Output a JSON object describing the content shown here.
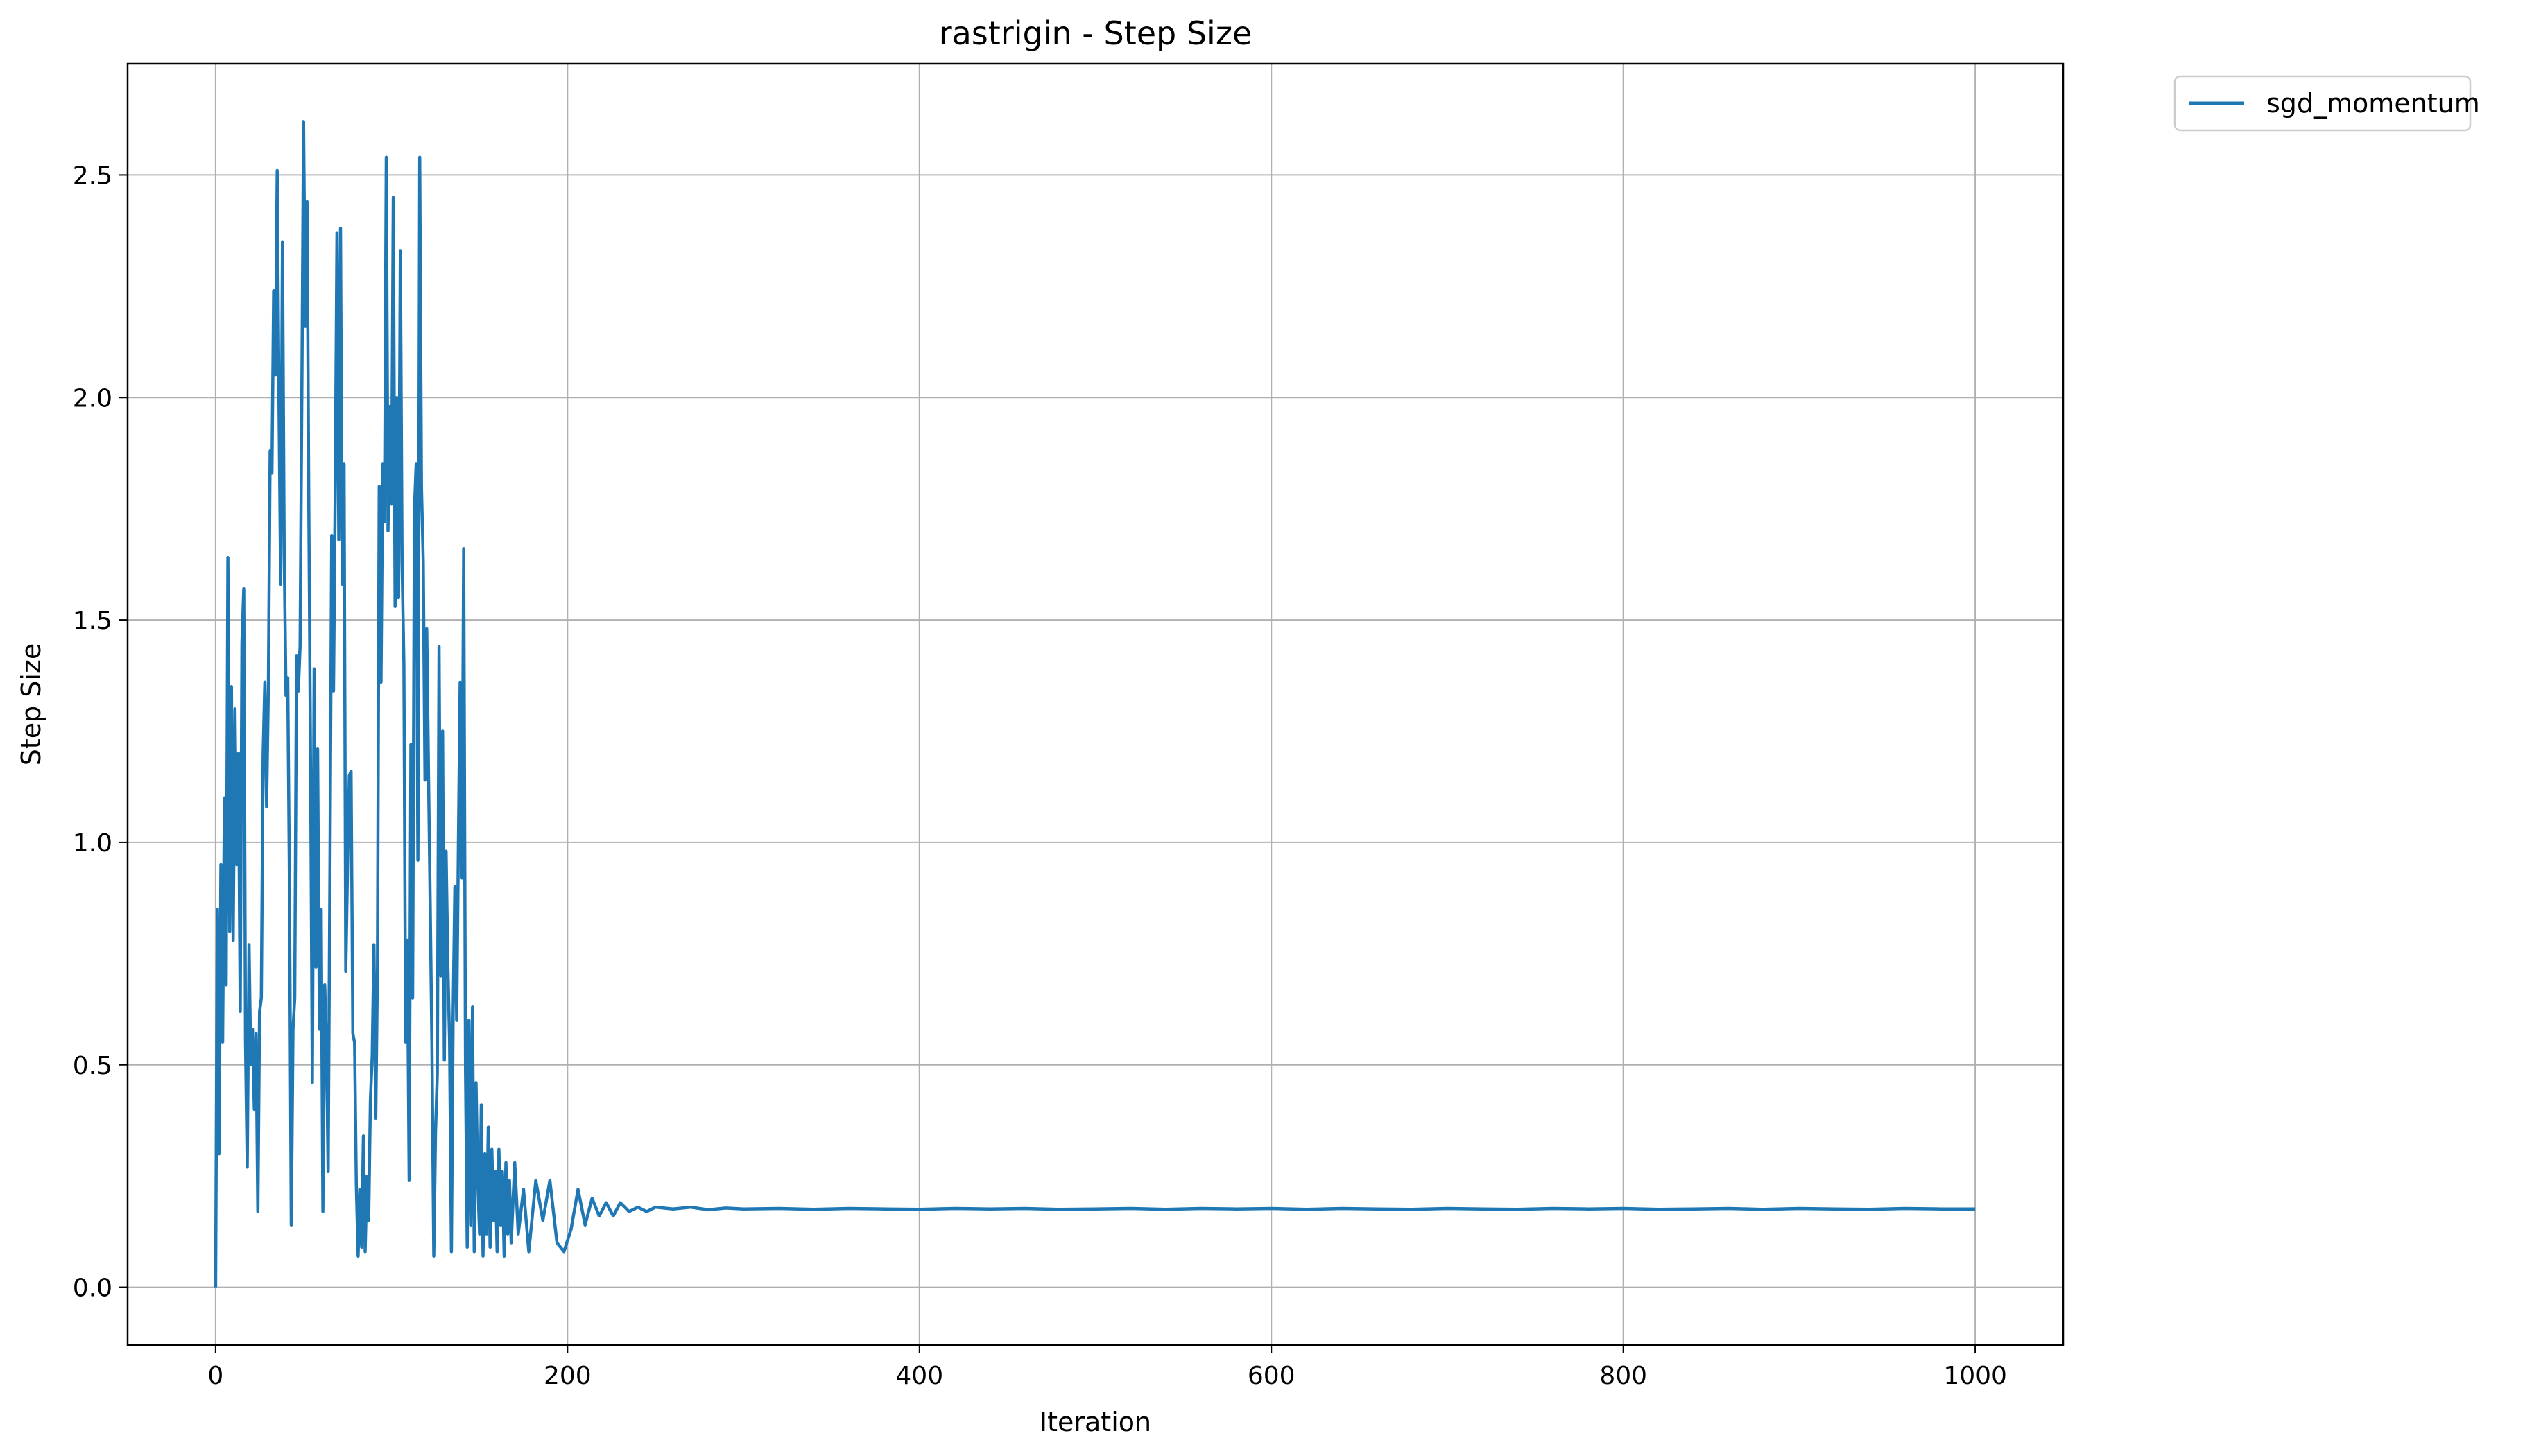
{
  "chart_data": {
    "type": "line",
    "title": "rastrigin - Step Size",
    "xlabel": "Iteration",
    "ylabel": "Step Size",
    "xlim": [
      -50,
      1050
    ],
    "ylim": [
      -0.13,
      2.75
    ],
    "xticks": [
      0,
      200,
      400,
      600,
      800,
      1000
    ],
    "xtick_labels": [
      "0",
      "200",
      "400",
      "600",
      "800",
      "1000"
    ],
    "yticks": [
      0.0,
      0.5,
      1.0,
      1.5,
      2.0,
      2.5
    ],
    "ytick_labels": [
      "0.0",
      "0.5",
      "1.0",
      "1.5",
      "2.0",
      "2.5"
    ],
    "grid": true,
    "legend_position": "outside-top-right",
    "series": [
      {
        "name": "sgd_momentum",
        "color": "#1f77b4",
        "points": [
          [
            0,
            0.0
          ],
          [
            1,
            0.85
          ],
          [
            2,
            0.3
          ],
          [
            3,
            0.95
          ],
          [
            4,
            0.55
          ],
          [
            5,
            1.1
          ],
          [
            6,
            0.68
          ],
          [
            7,
            1.64
          ],
          [
            8,
            0.8
          ],
          [
            9,
            1.35
          ],
          [
            10,
            0.78
          ],
          [
            11,
            1.3
          ],
          [
            12,
            0.95
          ],
          [
            13,
            1.2
          ],
          [
            14,
            0.62
          ],
          [
            15,
            1.45
          ],
          [
            16,
            1.57
          ],
          [
            17,
            0.55
          ],
          [
            18,
            0.27
          ],
          [
            19,
            0.77
          ],
          [
            20,
            0.5
          ],
          [
            21,
            0.58
          ],
          [
            22,
            0.4
          ],
          [
            23,
            0.57
          ],
          [
            24,
            0.17
          ],
          [
            25,
            0.62
          ],
          [
            26,
            0.65
          ],
          [
            27,
            1.2
          ],
          [
            28,
            1.36
          ],
          [
            29,
            1.08
          ],
          [
            30,
            1.35
          ],
          [
            31,
            1.88
          ],
          [
            32,
            1.83
          ],
          [
            33,
            2.24
          ],
          [
            34,
            2.05
          ],
          [
            35,
            2.51
          ],
          [
            36,
            2.0
          ],
          [
            37,
            1.58
          ],
          [
            38,
            2.35
          ],
          [
            39,
            1.65
          ],
          [
            40,
            1.33
          ],
          [
            41,
            1.37
          ],
          [
            42,
            0.9
          ],
          [
            43,
            0.14
          ],
          [
            44,
            0.58
          ],
          [
            45,
            0.65
          ],
          [
            46,
            1.42
          ],
          [
            47,
            1.34
          ],
          [
            48,
            1.44
          ],
          [
            49,
            2.0
          ],
          [
            50,
            2.62
          ],
          [
            51,
            2.16
          ],
          [
            52,
            2.44
          ],
          [
            53,
            1.75
          ],
          [
            54,
            1.15
          ],
          [
            55,
            0.46
          ],
          [
            56,
            1.39
          ],
          [
            57,
            0.72
          ],
          [
            58,
            1.21
          ],
          [
            59,
            0.58
          ],
          [
            60,
            0.85
          ],
          [
            61,
            0.17
          ],
          [
            62,
            0.68
          ],
          [
            63,
            0.55
          ],
          [
            64,
            0.26
          ],
          [
            65,
            0.95
          ],
          [
            66,
            1.69
          ],
          [
            67,
            1.34
          ],
          [
            68,
            1.8
          ],
          [
            69,
            2.37
          ],
          [
            70,
            1.68
          ],
          [
            71,
            2.38
          ],
          [
            72,
            1.58
          ],
          [
            73,
            1.85
          ],
          [
            74,
            0.71
          ],
          [
            75,
            0.95
          ],
          [
            76,
            1.15
          ],
          [
            77,
            1.16
          ],
          [
            78,
            0.57
          ],
          [
            79,
            0.55
          ],
          [
            80,
            0.23
          ],
          [
            81,
            0.07
          ],
          [
            82,
            0.22
          ],
          [
            83,
            0.09
          ],
          [
            84,
            0.34
          ],
          [
            85,
            0.08
          ],
          [
            86,
            0.25
          ],
          [
            87,
            0.15
          ],
          [
            88,
            0.42
          ],
          [
            89,
            0.52
          ],
          [
            90,
            0.77
          ],
          [
            91,
            0.38
          ],
          [
            92,
            0.72
          ],
          [
            93,
            1.8
          ],
          [
            94,
            1.36
          ],
          [
            95,
            1.85
          ],
          [
            96,
            1.72
          ],
          [
            97,
            2.54
          ],
          [
            98,
            1.7
          ],
          [
            99,
            1.98
          ],
          [
            100,
            1.76
          ],
          [
            101,
            2.45
          ],
          [
            102,
            1.53
          ],
          [
            103,
            2.0
          ],
          [
            104,
            1.55
          ],
          [
            105,
            2.33
          ],
          [
            106,
            1.63
          ],
          [
            107,
            1.4
          ],
          [
            108,
            0.55
          ],
          [
            109,
            0.78
          ],
          [
            110,
            0.24
          ],
          [
            111,
            1.22
          ],
          [
            112,
            0.65
          ],
          [
            113,
            1.75
          ],
          [
            114,
            1.85
          ],
          [
            115,
            0.96
          ],
          [
            116,
            2.54
          ],
          [
            117,
            1.8
          ],
          [
            118,
            1.63
          ],
          [
            119,
            1.14
          ],
          [
            120,
            1.48
          ],
          [
            121,
            1.15
          ],
          [
            122,
            0.85
          ],
          [
            123,
            0.53
          ],
          [
            124,
            0.07
          ],
          [
            125,
            0.35
          ],
          [
            126,
            0.48
          ],
          [
            127,
            1.44
          ],
          [
            128,
            0.7
          ],
          [
            129,
            1.25
          ],
          [
            130,
            0.51
          ],
          [
            131,
            0.98
          ],
          [
            132,
            0.72
          ],
          [
            133,
            0.55
          ],
          [
            134,
            0.08
          ],
          [
            135,
            0.62
          ],
          [
            136,
            0.9
          ],
          [
            137,
            0.6
          ],
          [
            138,
            1.0
          ],
          [
            139,
            1.36
          ],
          [
            140,
            0.92
          ],
          [
            141,
            1.66
          ],
          [
            142,
            0.5
          ],
          [
            143,
            0.09
          ],
          [
            144,
            0.6
          ],
          [
            145,
            0.14
          ],
          [
            146,
            0.63
          ],
          [
            147,
            0.08
          ],
          [
            148,
            0.46
          ],
          [
            149,
            0.24
          ],
          [
            150,
            0.12
          ],
          [
            151,
            0.41
          ],
          [
            152,
            0.07
          ],
          [
            153,
            0.3
          ],
          [
            154,
            0.12
          ],
          [
            155,
            0.36
          ],
          [
            156,
            0.09
          ],
          [
            157,
            0.31
          ],
          [
            158,
            0.15
          ],
          [
            159,
            0.26
          ],
          [
            160,
            0.08
          ],
          [
            161,
            0.31
          ],
          [
            162,
            0.14
          ],
          [
            163,
            0.26
          ],
          [
            164,
            0.07
          ],
          [
            165,
            0.28
          ],
          [
            166,
            0.12
          ],
          [
            167,
            0.24
          ],
          [
            168,
            0.1
          ],
          [
            170,
            0.28
          ],
          [
            172,
            0.12
          ],
          [
            175,
            0.22
          ],
          [
            178,
            0.08
          ],
          [
            182,
            0.24
          ],
          [
            186,
            0.15
          ],
          [
            190,
            0.24
          ],
          [
            194,
            0.1
          ],
          [
            198,
            0.08
          ],
          [
            202,
            0.13
          ],
          [
            206,
            0.22
          ],
          [
            210,
            0.14
          ],
          [
            214,
            0.2
          ],
          [
            218,
            0.16
          ],
          [
            222,
            0.19
          ],
          [
            226,
            0.16
          ],
          [
            230,
            0.19
          ],
          [
            235,
            0.17
          ],
          [
            240,
            0.18
          ],
          [
            245,
            0.17
          ],
          [
            250,
            0.18
          ],
          [
            260,
            0.176
          ],
          [
            270,
            0.18
          ],
          [
            280,
            0.174
          ],
          [
            290,
            0.178
          ],
          [
            300,
            0.176
          ],
          [
            320,
            0.177
          ],
          [
            340,
            0.175
          ],
          [
            360,
            0.177
          ],
          [
            380,
            0.176
          ],
          [
            400,
            0.175
          ],
          [
            420,
            0.177
          ],
          [
            440,
            0.176
          ],
          [
            460,
            0.177
          ],
          [
            480,
            0.175
          ],
          [
            500,
            0.176
          ],
          [
            520,
            0.177
          ],
          [
            540,
            0.175
          ],
          [
            560,
            0.177
          ],
          [
            580,
            0.176
          ],
          [
            600,
            0.177
          ],
          [
            620,
            0.175
          ],
          [
            640,
            0.177
          ],
          [
            660,
            0.176
          ],
          [
            680,
            0.175
          ],
          [
            700,
            0.177
          ],
          [
            720,
            0.176
          ],
          [
            740,
            0.175
          ],
          [
            760,
            0.177
          ],
          [
            780,
            0.176
          ],
          [
            800,
            0.177
          ],
          [
            820,
            0.175
          ],
          [
            840,
            0.176
          ],
          [
            860,
            0.177
          ],
          [
            880,
            0.175
          ],
          [
            900,
            0.177
          ],
          [
            920,
            0.176
          ],
          [
            940,
            0.175
          ],
          [
            960,
            0.177
          ],
          [
            980,
            0.176
          ],
          [
            1000,
            0.176
          ]
        ]
      }
    ]
  }
}
